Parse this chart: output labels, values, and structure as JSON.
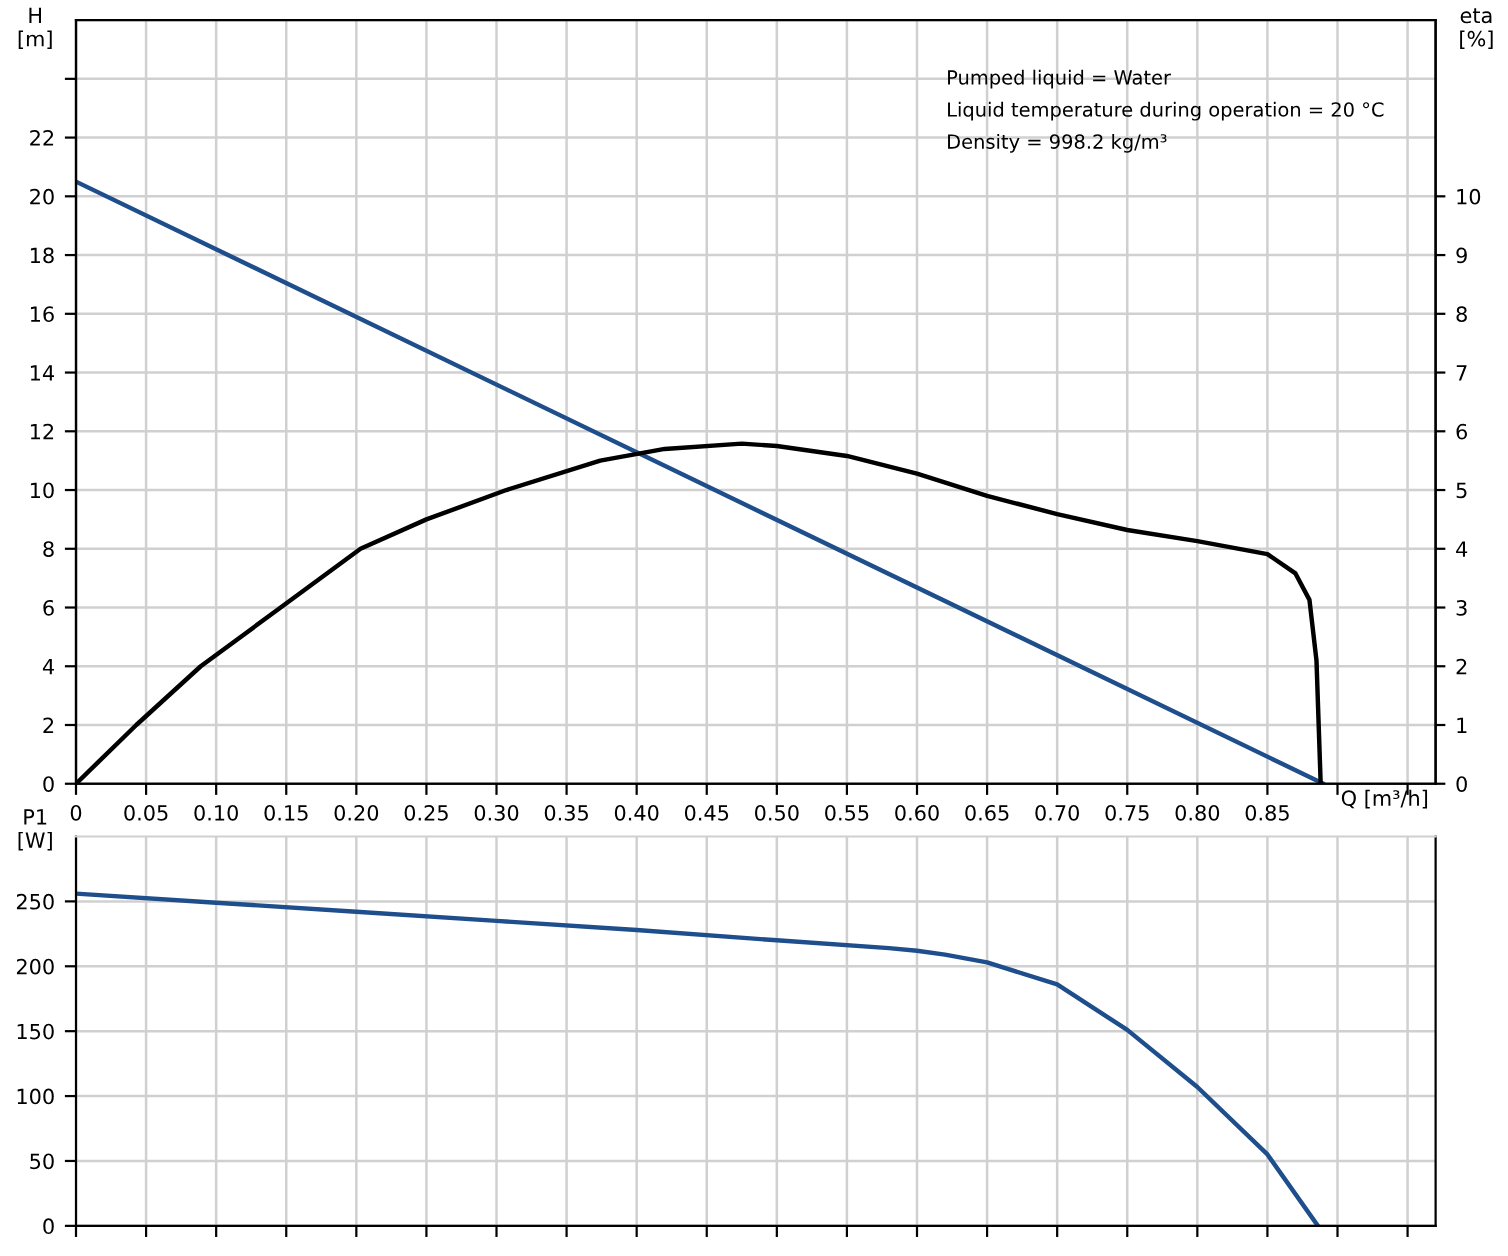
{
  "chart_data": [
    {
      "type": "line",
      "xlabel": "Q [m³/h]",
      "ylabel": "H\n[m]",
      "y2label": "eta\n[%]",
      "xlim": [
        0,
        0.97
      ],
      "xticks": [
        0,
        0.05,
        {
          "value": 0.1,
          "label": "0.10"
        },
        0.15,
        {
          "value": 0.2,
          "label": "0.20"
        },
        0.25,
        {
          "value": 0.3,
          "label": "0.30"
        },
        0.35,
        {
          "value": 0.4,
          "label": "0.40"
        },
        0.45,
        {
          "value": 0.5,
          "label": "0.50"
        },
        0.55,
        {
          "value": 0.6,
          "label": "0.60"
        },
        0.65,
        {
          "value": 0.7,
          "label": "0.70"
        },
        0.75,
        {
          "value": 0.8,
          "label": "0.80"
        },
        0.85,
        {
          "value": 0.9,
          "label": null
        },
        {
          "value": 0.95,
          "label": null
        }
      ],
      "ylim": [
        0,
        26
      ],
      "yticks": [
        0,
        2,
        4,
        6,
        8,
        10,
        12,
        14,
        16,
        18,
        20,
        22,
        {
          "value": 24,
          "label": null
        }
      ],
      "y2lim": [
        0,
        13
      ],
      "y2ticks": [
        0,
        1,
        2,
        3,
        4,
        5,
        6,
        7,
        8,
        9,
        10
      ],
      "grid": true,
      "annotations": [
        "Pumped liquid = Water",
        "Liquid temperature during operation = 20 °C",
        "Density = 998.2 kg/m³"
      ],
      "series": [
        {
          "color": "#1f4e8c",
          "x": [
            0,
            0.89
          ],
          "values": [
            20.5,
            0
          ]
        },
        {
          "color": "#000000",
          "axis": "y2",
          "x": [
            0,
            0.043,
            0.089,
            0.146,
            0.203,
            0.25,
            0.307,
            0.374,
            0.42,
            0.475,
            0.5,
            0.55,
            0.6,
            0.65,
            0.7,
            0.75,
            0.8,
            0.85,
            0.87,
            0.88,
            0.885,
            0.888
          ],
          "values": [
            0,
            1,
            2,
            3,
            4,
            4.5,
            5,
            5.5,
            5.7,
            5.79,
            5.75,
            5.58,
            5.28,
            4.9,
            4.59,
            4.32,
            4.13,
            3.91,
            3.58,
            3.13,
            2.1,
            0
          ]
        }
      ]
    },
    {
      "type": "line",
      "ylabel": "P1\n[W]",
      "tick_labels": "y",
      "xlim": [
        0,
        0.97
      ],
      "xticks": [
        0,
        0.05,
        0.1,
        0.15,
        0.2,
        0.25,
        0.3,
        0.35,
        0.4,
        0.45,
        0.5,
        0.55,
        0.6,
        0.65,
        0.7,
        0.75,
        0.8,
        0.85,
        0.9,
        0.95
      ],
      "ylim": [
        0,
        300
      ],
      "yticks": [
        0,
        50,
        100,
        150,
        200,
        250
      ],
      "grid": true,
      "series": [
        {
          "color": "#1f4e8c",
          "x": [
            0,
            0.1,
            0.2,
            0.3,
            0.4,
            0.5,
            0.58,
            0.6,
            0.62,
            0.65,
            0.7,
            0.75,
            0.8,
            0.85,
            0.886
          ],
          "values": [
            256,
            249,
            242,
            235,
            228,
            220,
            214,
            212,
            209,
            203,
            186,
            151,
            107,
            55,
            0
          ]
        }
      ]
    }
  ]
}
